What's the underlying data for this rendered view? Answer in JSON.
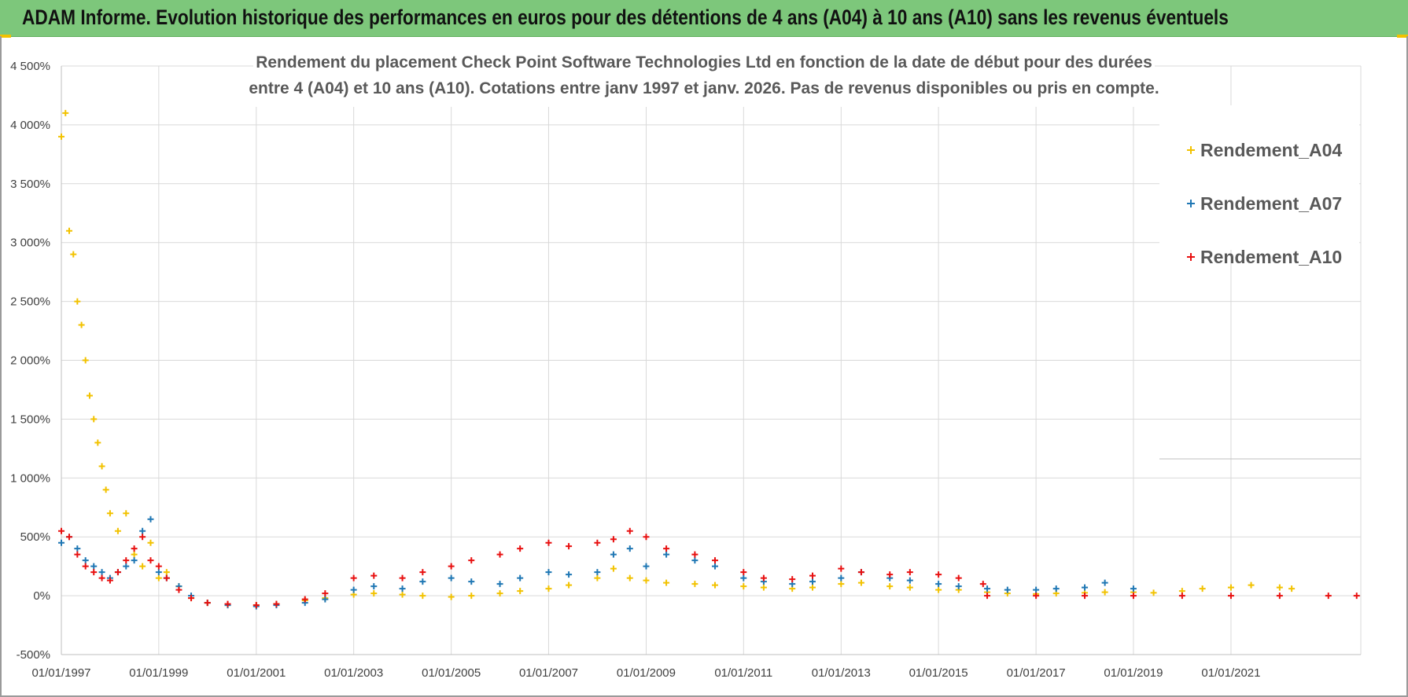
{
  "header": {
    "title": "ADAM Informe. Evolution historique des performances en euros pour des détentions de 4 ans (A04) à 10 ans (A10) sans les revenus éventuels"
  },
  "colors": {
    "header_bg": "#7dc77b",
    "accent": "#f2c200",
    "grid": "#d9d9d9"
  },
  "chart_data": {
    "type": "scatter",
    "title_lines": [
      "Rendement du placement Check Point Software Technologies Ltd en fonction de la date de début pour des durées",
      "entre 4 (A04) et 10 ans (A10).  Cotations entre janv 1997 et janv. 2026. Pas de revenus disponibles ou pris en compte."
    ],
    "x_axis_type": "date",
    "xlim": [
      "1997-01-01",
      "2023-09-01"
    ],
    "x_tick_labels": [
      "01/01/1997",
      "01/01/1999",
      "01/01/2001",
      "01/01/2003",
      "01/01/2005",
      "01/01/2007",
      "01/01/2009",
      "01/01/2011",
      "01/01/2013",
      "01/01/2015",
      "01/01/2017",
      "01/01/2019",
      "01/01/2021"
    ],
    "ylim": [
      -500,
      4500
    ],
    "y_ticks": [
      -500,
      0,
      500,
      1000,
      1500,
      2000,
      2500,
      3000,
      3500,
      4000,
      4500
    ],
    "y_tick_labels": [
      "-500%",
      "0%",
      "500%",
      "1 000%",
      "1 500%",
      "2 000%",
      "2 500%",
      "3 000%",
      "3 500%",
      "4 000%",
      "4 500%"
    ],
    "y_unit": "%",
    "grid": true,
    "marker": "+",
    "legend_position": "top-right",
    "series": [
      {
        "name": "Rendement_A04",
        "color": "#f2c200",
        "x": [
          "1997-01-01",
          "1997-02-01",
          "1997-03-01",
          "1997-04-01",
          "1997-05-01",
          "1997-06-01",
          "1997-07-01",
          "1997-08-01",
          "1997-09-01",
          "1997-10-01",
          "1997-11-01",
          "1997-12-01",
          "1998-01-01",
          "1998-03-01",
          "1998-05-01",
          "1998-07-01",
          "1998-09-01",
          "1998-11-01",
          "1999-01-01",
          "1999-03-01",
          "1999-06-01",
          "1999-09-01",
          "2000-01-01",
          "2000-06-01",
          "2001-01-01",
          "2001-06-01",
          "2002-01-01",
          "2002-06-01",
          "2003-01-01",
          "2003-06-01",
          "2004-01-01",
          "2004-06-01",
          "2005-01-01",
          "2005-06-01",
          "2006-01-01",
          "2006-06-01",
          "2007-01-01",
          "2007-06-01",
          "2008-01-01",
          "2008-05-01",
          "2008-09-01",
          "2009-01-01",
          "2009-06-01",
          "2010-01-01",
          "2010-06-01",
          "2011-01-01",
          "2011-06-01",
          "2012-01-01",
          "2012-06-01",
          "2013-01-01",
          "2013-06-01",
          "2014-01-01",
          "2014-06-01",
          "2015-01-01",
          "2015-06-01",
          "2016-01-01",
          "2016-06-01",
          "2017-01-01",
          "2017-06-01",
          "2018-01-01",
          "2018-06-01",
          "2019-01-01",
          "2019-06-01",
          "2020-01-01",
          "2020-06-01",
          "2021-01-01",
          "2021-06-01",
          "2022-01-01",
          "2022-04-01"
        ],
        "values": [
          3900,
          4100,
          3100,
          2900,
          2500,
          2300,
          2000,
          1700,
          1500,
          1300,
          1100,
          900,
          700,
          550,
          700,
          350,
          250,
          450,
          150,
          200,
          80,
          -20,
          -60,
          -80,
          -80,
          -70,
          -40,
          -20,
          10,
          20,
          10,
          0,
          -10,
          0,
          20,
          40,
          60,
          90,
          150,
          230,
          150,
          130,
          110,
          100,
          90,
          80,
          70,
          60,
          70,
          100,
          110,
          80,
          70,
          50,
          50,
          30,
          20,
          15,
          20,
          25,
          30,
          30,
          25,
          40,
          60,
          70,
          90,
          70,
          60
        ]
      },
      {
        "name": "Rendement_A07",
        "color": "#1f77b4",
        "x": [
          "1997-01-01",
          "1997-03-01",
          "1997-05-01",
          "1997-07-01",
          "1997-09-01",
          "1997-11-01",
          "1998-01-01",
          "1998-03-01",
          "1998-05-01",
          "1998-07-01",
          "1998-09-01",
          "1998-11-01",
          "1999-01-01",
          "1999-03-01",
          "1999-06-01",
          "1999-09-01",
          "2000-01-01",
          "2000-06-01",
          "2001-01-01",
          "2001-06-01",
          "2002-01-01",
          "2002-06-01",
          "2003-01-01",
          "2003-06-01",
          "2004-01-01",
          "2004-06-01",
          "2005-01-01",
          "2005-06-01",
          "2006-01-01",
          "2006-06-01",
          "2007-01-01",
          "2007-06-01",
          "2008-01-01",
          "2008-05-01",
          "2008-09-01",
          "2009-01-01",
          "2009-06-01",
          "2010-01-01",
          "2010-06-01",
          "2011-01-01",
          "2011-06-01",
          "2012-01-01",
          "2012-06-01",
          "2013-01-01",
          "2013-06-01",
          "2014-01-01",
          "2014-06-01",
          "2015-01-01",
          "2015-06-01",
          "2016-01-01",
          "2016-06-01",
          "2017-01-01",
          "2017-06-01",
          "2018-01-01",
          "2018-06-01",
          "2019-01-01"
        ],
        "values": [
          450,
          500,
          400,
          300,
          250,
          200,
          150,
          200,
          250,
          300,
          550,
          650,
          200,
          150,
          80,
          0,
          -60,
          -80,
          -90,
          -80,
          -60,
          -30,
          50,
          80,
          60,
          120,
          150,
          120,
          100,
          150,
          200,
          180,
          200,
          350,
          400,
          250,
          350,
          300,
          250,
          150,
          120,
          100,
          120,
          150,
          200,
          150,
          130,
          100,
          80,
          60,
          50,
          50,
          60,
          70,
          110,
          60
        ]
      },
      {
        "name": "Rendement_A10",
        "color": "#e81010",
        "x": [
          "1997-01-01",
          "1997-03-01",
          "1997-05-01",
          "1997-07-01",
          "1997-09-01",
          "1997-11-01",
          "1998-01-01",
          "1998-03-01",
          "1998-05-01",
          "1998-07-01",
          "1998-09-01",
          "1998-11-01",
          "1999-01-01",
          "1999-03-01",
          "1999-06-01",
          "1999-09-01",
          "2000-01-01",
          "2000-06-01",
          "2001-01-01",
          "2001-06-01",
          "2002-01-01",
          "2002-06-01",
          "2003-01-01",
          "2003-06-01",
          "2004-01-01",
          "2004-06-01",
          "2005-01-01",
          "2005-06-01",
          "2006-01-01",
          "2006-06-01",
          "2007-01-01",
          "2007-06-01",
          "2008-01-01",
          "2008-05-01",
          "2008-09-01",
          "2009-01-01",
          "2009-06-01",
          "2010-01-01",
          "2010-06-01",
          "2011-01-01",
          "2011-06-01",
          "2012-01-01",
          "2012-06-01",
          "2013-01-01",
          "2013-06-01",
          "2014-01-01",
          "2014-06-01",
          "2015-01-01",
          "2015-06-01",
          "2015-12-01",
          "2016-01-01",
          "2017-01-01",
          "2018-01-01",
          "2019-01-01",
          "2020-01-01",
          "2021-01-01",
          "2022-01-01",
          "2023-01-01",
          "2023-08-01"
        ],
        "values": [
          550,
          500,
          350,
          250,
          200,
          150,
          130,
          200,
          300,
          400,
          500,
          300,
          250,
          150,
          50,
          -20,
          -60,
          -70,
          -80,
          -70,
          -30,
          20,
          150,
          170,
          150,
          200,
          250,
          300,
          350,
          400,
          450,
          420,
          450,
          480,
          550,
          500,
          400,
          350,
          300,
          200,
          150,
          140,
          170,
          230,
          200,
          180,
          200,
          180,
          150,
          100,
          0,
          0,
          0,
          0,
          0,
          0,
          0,
          0,
          0
        ]
      }
    ]
  }
}
